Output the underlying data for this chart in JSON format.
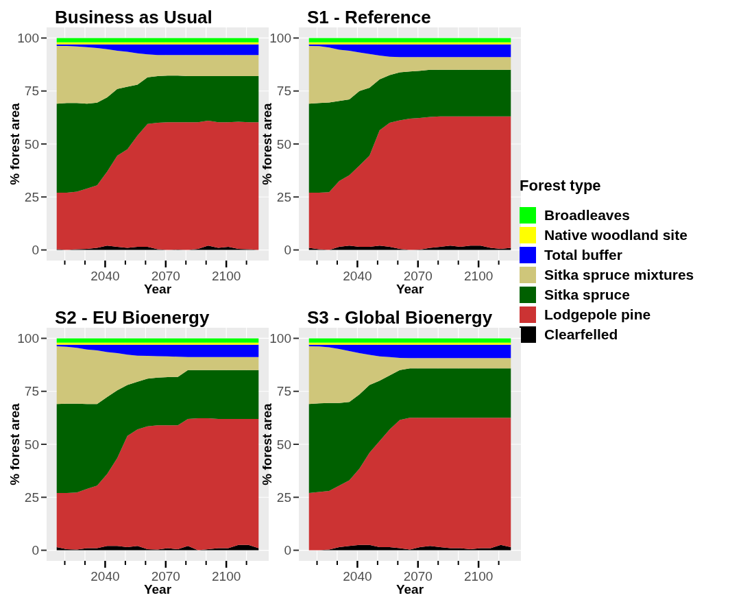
{
  "chart_data": [
    {
      "type": "area",
      "stacked": true,
      "title": "Business as Usual",
      "xlabel": "Year",
      "ylabel": "% forest area",
      "xlim": [
        2011,
        2121
      ],
      "xticks": [
        {
          "value": 2020,
          "label": null
        },
        {
          "value": 2030,
          "label": null
        },
        2040,
        {
          "value": 2050,
          "label": null
        },
        {
          "value": 2060,
          "label": null
        },
        2070,
        {
          "value": 2080,
          "label": null
        },
        {
          "value": 2090,
          "label": null
        },
        2100,
        {
          "value": 2110,
          "label": null
        }
      ],
      "ylim": [
        -5,
        105
      ],
      "yticks": [
        0,
        25,
        50,
        75,
        100
      ],
      "grid": true,
      "x": [
        2016,
        2021,
        2026,
        2031,
        2036,
        2041,
        2046,
        2051,
        2056,
        2061,
        2066,
        2071,
        2076,
        2081,
        2086,
        2091,
        2096,
        2101,
        2106,
        2111,
        2116
      ],
      "series": [
        {
          "color": "#000000",
          "values": [
            0.3,
            0,
            0.3,
            0.5,
            1,
            2,
            1.5,
            1,
            1.5,
            1.5,
            0.3,
            0,
            0.2,
            0,
            0.5,
            2,
            1,
            1.5,
            0.5,
            0.3,
            0
          ]
        },
        {
          "color": "#cc3333",
          "values": [
            26.7,
            27,
            27.2,
            28.5,
            29.5,
            35,
            43,
            46.5,
            52.5,
            58,
            59.7,
            60.3,
            60.1,
            60.3,
            59.8,
            59,
            59.3,
            58.8,
            60,
            60,
            60.3
          ]
        },
        {
          "color": "#006000",
          "values": [
            42,
            42.3,
            41.8,
            40,
            39,
            35,
            31.5,
            29.5,
            24,
            22,
            22,
            22,
            22,
            21.7,
            21.7,
            21,
            21.7,
            21.7,
            21.5,
            21.7,
            21.7
          ]
        },
        {
          "color": "#cfc67a",
          "values": [
            27.3,
            27,
            26.7,
            26.7,
            25.8,
            22.7,
            18,
            16.5,
            14.8,
            10.8,
            10,
            9.7,
            9.7,
            10,
            10,
            10,
            10,
            10,
            10,
            10,
            10
          ]
        },
        {
          "color": "#0000ff",
          "values": [
            0.7,
            0.7,
            1,
            1.3,
            1.7,
            2.3,
            3,
            3.5,
            4.2,
            4.7,
            5,
            5,
            5,
            5,
            5,
            5,
            5,
            5,
            5,
            5,
            5
          ]
        },
        {
          "color": "#ffff00",
          "values": [
            1,
            1,
            1,
            1,
            1,
            1,
            1,
            1,
            1,
            1,
            1,
            1,
            1,
            1,
            1,
            1,
            1,
            1,
            1,
            1,
            1
          ]
        },
        {
          "color": "#00ff00",
          "values": [
            2,
            2,
            2,
            2,
            2,
            2,
            2,
            2,
            2,
            2,
            2,
            2,
            2,
            2,
            2,
            2,
            2,
            2,
            2,
            2,
            2
          ]
        }
      ]
    },
    {
      "type": "area",
      "stacked": true,
      "title": "S1 - Reference",
      "xlabel": "Year",
      "ylabel": "% forest area",
      "legend": "right",
      "legend_title": "Forest type",
      "xlim": [
        2011,
        2121
      ],
      "xticks": [
        {
          "value": 2020,
          "label": null
        },
        {
          "value": 2030,
          "label": null
        },
        2040,
        {
          "value": 2050,
          "label": null
        },
        {
          "value": 2060,
          "label": null
        },
        2070,
        {
          "value": 2080,
          "label": null
        },
        {
          "value": 2090,
          "label": null
        },
        2100,
        {
          "value": 2110,
          "label": null
        }
      ],
      "ylim": [
        -5,
        105
      ],
      "yticks": [
        0,
        25,
        50,
        75,
        100
      ],
      "grid": true,
      "x": [
        2016,
        2021,
        2026,
        2031,
        2036,
        2041,
        2046,
        2051,
        2056,
        2061,
        2066,
        2071,
        2076,
        2081,
        2086,
        2091,
        2096,
        2101,
        2106,
        2111,
        2116
      ],
      "series": [
        {
          "name": "Clearfelled",
          "color": "#000000",
          "values": [
            1,
            0.3,
            0,
            1.5,
            2,
            1.5,
            1.5,
            2,
            1.5,
            0.5,
            0,
            0.2,
            1,
            1.5,
            2,
            1.5,
            2,
            2,
            1,
            0.5,
            1
          ]
        },
        {
          "name": "Lodgepole pine",
          "color": "#cc3333",
          "values": [
            26,
            26.7,
            27.3,
            31,
            33.3,
            38.3,
            43,
            54.5,
            58.5,
            60.7,
            62,
            62.1,
            61.8,
            61.5,
            61,
            61.5,
            61,
            61,
            62,
            62.5,
            62
          ]
        },
        {
          "name": "Sitka spruce",
          "color": "#006000",
          "values": [
            42,
            42.3,
            42.3,
            37.8,
            35.7,
            35.2,
            32,
            24,
            22.5,
            22.6,
            22.2,
            22.2,
            22.2,
            22,
            22,
            22,
            22,
            22,
            22,
            22,
            22
          ]
        },
        {
          "name": "Sitka spruce mixtures",
          "color": "#cfc67a",
          "values": [
            27.3,
            26.9,
            25.9,
            24.2,
            23,
            18.2,
            16,
            11.2,
            8.7,
            7.2,
            6.8,
            6.5,
            6,
            6,
            6,
            6,
            6,
            6,
            6,
            6,
            6
          ]
        },
        {
          "name": "Total buffer",
          "color": "#0000ff",
          "values": [
            0.7,
            0.8,
            1.5,
            2.5,
            3,
            3.8,
            4.5,
            5.3,
            5.8,
            6,
            6,
            6,
            6,
            6,
            6,
            6,
            6,
            6,
            6,
            6,
            6
          ]
        },
        {
          "name": "Native woodland site",
          "color": "#ffff00",
          "values": [
            1,
            1,
            1,
            1,
            1,
            1,
            1,
            1,
            1,
            1,
            1,
            1,
            1,
            1,
            1,
            1,
            1,
            1,
            1,
            1,
            1
          ]
        },
        {
          "name": "Broadleaves",
          "color": "#00ff00",
          "values": [
            2,
            2,
            2,
            2,
            2,
            2,
            2,
            2,
            2,
            2,
            2,
            2,
            2,
            2,
            2,
            2,
            2,
            2,
            2,
            2,
            2
          ]
        }
      ]
    },
    {
      "type": "area",
      "stacked": true,
      "title": "S2 - EU Bioenergy",
      "xlabel": "Year",
      "ylabel": "% forest area",
      "xlim": [
        2011,
        2121
      ],
      "xticks": [
        {
          "value": 2020,
          "label": null
        },
        {
          "value": 2030,
          "label": null
        },
        2040,
        {
          "value": 2050,
          "label": null
        },
        {
          "value": 2060,
          "label": null
        },
        2070,
        {
          "value": 2080,
          "label": null
        },
        {
          "value": 2090,
          "label": null
        },
        2100,
        {
          "value": 2110,
          "label": null
        }
      ],
      "ylim": [
        -5,
        105
      ],
      "yticks": [
        0,
        25,
        50,
        75,
        100
      ],
      "grid": true,
      "x": [
        2016,
        2021,
        2026,
        2031,
        2036,
        2041,
        2046,
        2051,
        2056,
        2061,
        2066,
        2071,
        2076,
        2081,
        2086,
        2091,
        2096,
        2101,
        2106,
        2111,
        2116
      ],
      "series": [
        {
          "color": "#000000",
          "values": [
            1.5,
            0.5,
            0.3,
            1,
            1,
            2,
            2,
            1.5,
            2,
            0.5,
            0.3,
            1,
            0.5,
            2,
            0,
            0.5,
            1,
            1,
            2.5,
            2.5,
            1
          ]
        },
        {
          "color": "#cc3333",
          "values": [
            25.5,
            26.5,
            27,
            28,
            29.5,
            34,
            41.5,
            52.5,
            55,
            58,
            58.7,
            58,
            58.5,
            60,
            62.3,
            61.8,
            61,
            61,
            59.5,
            59.5,
            61
          ]
        },
        {
          "color": "#006000",
          "values": [
            42,
            42.2,
            41.9,
            40,
            38.5,
            36.3,
            32,
            24,
            22.5,
            22.5,
            22.5,
            22.7,
            22.8,
            23,
            22.7,
            22.7,
            23,
            23,
            23,
            23,
            23
          ]
        },
        {
          "color": "#cfc67a",
          "values": [
            27.3,
            26.8,
            26.3,
            25.7,
            25.3,
            21.2,
            17.5,
            14.3,
            12.3,
            10.7,
            10.1,
            9.8,
            9.5,
            6.2,
            6.2,
            6.2,
            6.2,
            6.2,
            6.2,
            6.2,
            6.2
          ]
        },
        {
          "color": "#0000ff",
          "values": [
            0.7,
            1,
            1.5,
            2.3,
            2.7,
            3.5,
            4,
            4.7,
            5.2,
            5.3,
            5.4,
            5.5,
            5.7,
            5.8,
            5.8,
            5.8,
            5.8,
            5.8,
            5.8,
            5.8,
            5.8
          ]
        },
        {
          "color": "#ffff00",
          "values": [
            1,
            1,
            1,
            1,
            1,
            1,
            1,
            1,
            1,
            1,
            1,
            1,
            1,
            1,
            1,
            1,
            1,
            1,
            1,
            1,
            1
          ]
        },
        {
          "color": "#00ff00",
          "values": [
            2,
            2,
            2,
            2,
            2,
            2,
            2,
            2,
            2,
            2,
            2,
            2,
            2,
            2,
            2,
            2,
            2,
            2,
            2,
            2,
            2
          ]
        }
      ]
    },
    {
      "type": "area",
      "stacked": true,
      "title": "S3 - Global Bioenergy",
      "xlabel": "Year",
      "ylabel": "% forest area",
      "xlim": [
        2011,
        2121
      ],
      "xticks": [
        {
          "value": 2020,
          "label": null
        },
        {
          "value": 2030,
          "label": null
        },
        2040,
        {
          "value": 2050,
          "label": null
        },
        {
          "value": 2060,
          "label": null
        },
        2070,
        {
          "value": 2080,
          "label": null
        },
        {
          "value": 2090,
          "label": null
        },
        2100,
        {
          "value": 2110,
          "label": null
        }
      ],
      "ylim": [
        -5,
        105
      ],
      "yticks": [
        0,
        25,
        50,
        75,
        100
      ],
      "grid": true,
      "x": [
        2016,
        2021,
        2026,
        2031,
        2036,
        2041,
        2046,
        2051,
        2056,
        2061,
        2066,
        2071,
        2076,
        2081,
        2086,
        2091,
        2096,
        2101,
        2106,
        2111,
        2116
      ],
      "series": [
        {
          "color": "#000000",
          "values": [
            0,
            0,
            0.3,
            1.5,
            2,
            2.5,
            2.5,
            1.5,
            1.5,
            1,
            0.3,
            1.5,
            2,
            1.5,
            1,
            1,
            0.5,
            1,
            1,
            2.5,
            1.5
          ]
        },
        {
          "color": "#cc3333",
          "values": [
            27,
            27.5,
            27.7,
            29,
            31,
            36,
            43.5,
            50,
            55.5,
            60.5,
            62.2,
            61,
            60.5,
            61,
            61.5,
            61.5,
            62,
            61.5,
            61.5,
            60,
            61
          ]
        },
        {
          "color": "#006000",
          "values": [
            42,
            41.8,
            41.5,
            39,
            37,
            35,
            32,
            28.5,
            25.5,
            23.5,
            23.3,
            23.3,
            23.3,
            23.3,
            23.3,
            23.3,
            23.3,
            23.3,
            23.3,
            23.3,
            23.3
          ]
        },
        {
          "color": "#cfc67a",
          "values": [
            27.3,
            26.9,
            26.3,
            25.5,
            24,
            19.5,
            14.2,
            11.5,
            8.7,
            5.8,
            4.9,
            4.9,
            4.9,
            4.9,
            4.9,
            4.9,
            4.9,
            4.9,
            4.9,
            4.9,
            4.9
          ]
        },
        {
          "color": "#0000ff",
          "values": [
            0.7,
            0.8,
            1.2,
            2,
            3,
            4,
            4.8,
            5.5,
            5.8,
            6.2,
            6.3,
            6.3,
            6.3,
            6.3,
            6.3,
            6.3,
            6.3,
            6.3,
            6.3,
            6.3,
            6.3
          ]
        },
        {
          "color": "#ffff00",
          "values": [
            1,
            1,
            1,
            1,
            1,
            1,
            1,
            1,
            1,
            1,
            1,
            1,
            1,
            1,
            1,
            1,
            1,
            1,
            1,
            1,
            1
          ]
        },
        {
          "color": "#00ff00",
          "values": [
            2,
            2,
            2,
            2,
            2,
            2,
            2,
            2,
            2,
            2,
            2,
            2,
            2,
            2,
            2,
            2,
            2,
            2,
            2,
            2,
            2
          ]
        }
      ]
    }
  ]
}
